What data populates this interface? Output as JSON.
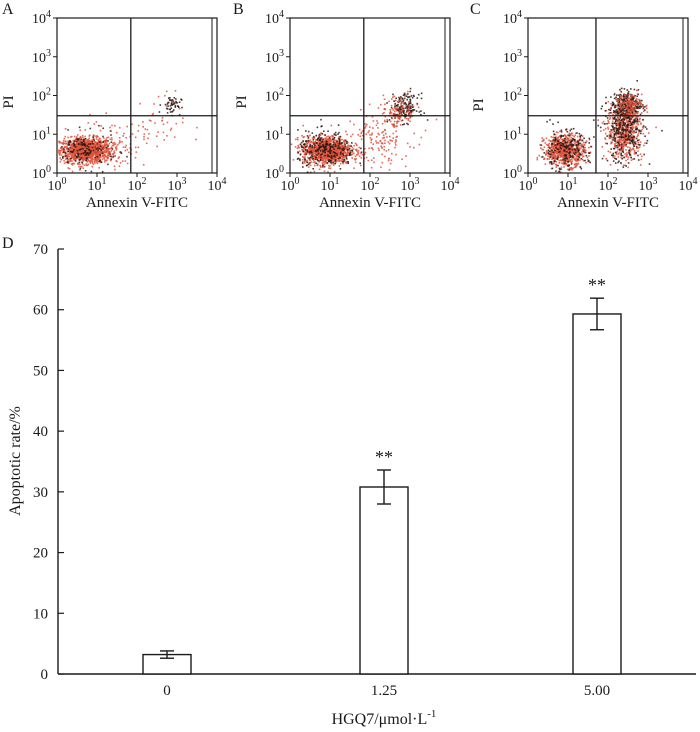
{
  "colors": {
    "ink": "#1a1a1a",
    "dot_primary": "#e0523c",
    "dot_dark": "#2a1a14",
    "bar_fill": "#ffffff"
  },
  "panels": [
    {
      "label": "A",
      "ylabel": "PI",
      "xlabel": "Annexin V-FITC",
      "gate": {
        "x": 70,
        "y": 30
      },
      "clusters": [
        {
          "cx": 5,
          "cy": 4,
          "sx": 0.32,
          "sy": 0.16,
          "n": 1200,
          "color": "primary"
        },
        {
          "cx": 5,
          "cy": 4,
          "sx": 0.38,
          "sy": 0.22,
          "n": 160,
          "color": "dark"
        },
        {
          "cx": 25,
          "cy": 6,
          "sx": 0.4,
          "sy": 0.3,
          "n": 90,
          "color": "primary"
        },
        {
          "cx": 700,
          "cy": 60,
          "sx": 0.12,
          "sy": 0.12,
          "n": 50,
          "color": "dark"
        },
        {
          "cx": 300,
          "cy": 20,
          "sx": 0.35,
          "sy": 0.4,
          "n": 40,
          "color": "primary"
        }
      ]
    },
    {
      "label": "B",
      "ylabel": "PI",
      "xlabel": "Annexin V-FITC",
      "gate": {
        "x": 70,
        "y": 30
      },
      "clusters": [
        {
          "cx": 8,
          "cy": 4,
          "sx": 0.3,
          "sy": 0.18,
          "n": 1100,
          "color": "primary"
        },
        {
          "cx": 8,
          "cy": 4,
          "sx": 0.36,
          "sy": 0.24,
          "n": 260,
          "color": "dark"
        },
        {
          "cx": 150,
          "cy": 8,
          "sx": 0.4,
          "sy": 0.35,
          "n": 140,
          "color": "primary"
        },
        {
          "cx": 700,
          "cy": 50,
          "sx": 0.18,
          "sy": 0.18,
          "n": 160,
          "color": "dark"
        },
        {
          "cx": 500,
          "cy": 40,
          "sx": 0.22,
          "sy": 0.22,
          "n": 110,
          "color": "primary"
        }
      ]
    },
    {
      "label": "C",
      "ylabel": "PI",
      "xlabel": "Annexin V-FITC",
      "gate": {
        "x": 50,
        "y": 30
      },
      "clusters": [
        {
          "cx": 8,
          "cy": 4,
          "sx": 0.25,
          "sy": 0.2,
          "n": 700,
          "color": "primary"
        },
        {
          "cx": 8,
          "cy": 4,
          "sx": 0.3,
          "sy": 0.26,
          "n": 200,
          "color": "dark"
        },
        {
          "cx": 250,
          "cy": 12,
          "sx": 0.22,
          "sy": 0.35,
          "n": 550,
          "color": "primary"
        },
        {
          "cx": 250,
          "cy": 12,
          "sx": 0.26,
          "sy": 0.4,
          "n": 280,
          "color": "dark"
        },
        {
          "cx": 300,
          "cy": 60,
          "sx": 0.18,
          "sy": 0.16,
          "n": 260,
          "color": "dark"
        },
        {
          "cx": 300,
          "cy": 60,
          "sx": 0.18,
          "sy": 0.16,
          "n": 160,
          "color": "primary"
        }
      ]
    }
  ],
  "chart_data": {
    "type": "bar",
    "label": "D",
    "categories": [
      "0",
      "1.25",
      "5.00"
    ],
    "values": [
      3.2,
      30.8,
      59.3
    ],
    "errors": [
      0.6,
      2.8,
      2.6
    ],
    "significance": [
      "",
      "**",
      "**"
    ],
    "xlabel_main": "HGQ7/μmol·L",
    "xlabel_sup": "-1",
    "ylabel": "Apoptotic rate/%",
    "ylim": [
      0,
      70
    ],
    "yticks": [
      0,
      10,
      20,
      30,
      40,
      50,
      60,
      70
    ],
    "grid": false
  },
  "axes_text": {
    "log_base": "10",
    "log_exps": [
      "0",
      "1",
      "2",
      "3",
      "4"
    ]
  }
}
